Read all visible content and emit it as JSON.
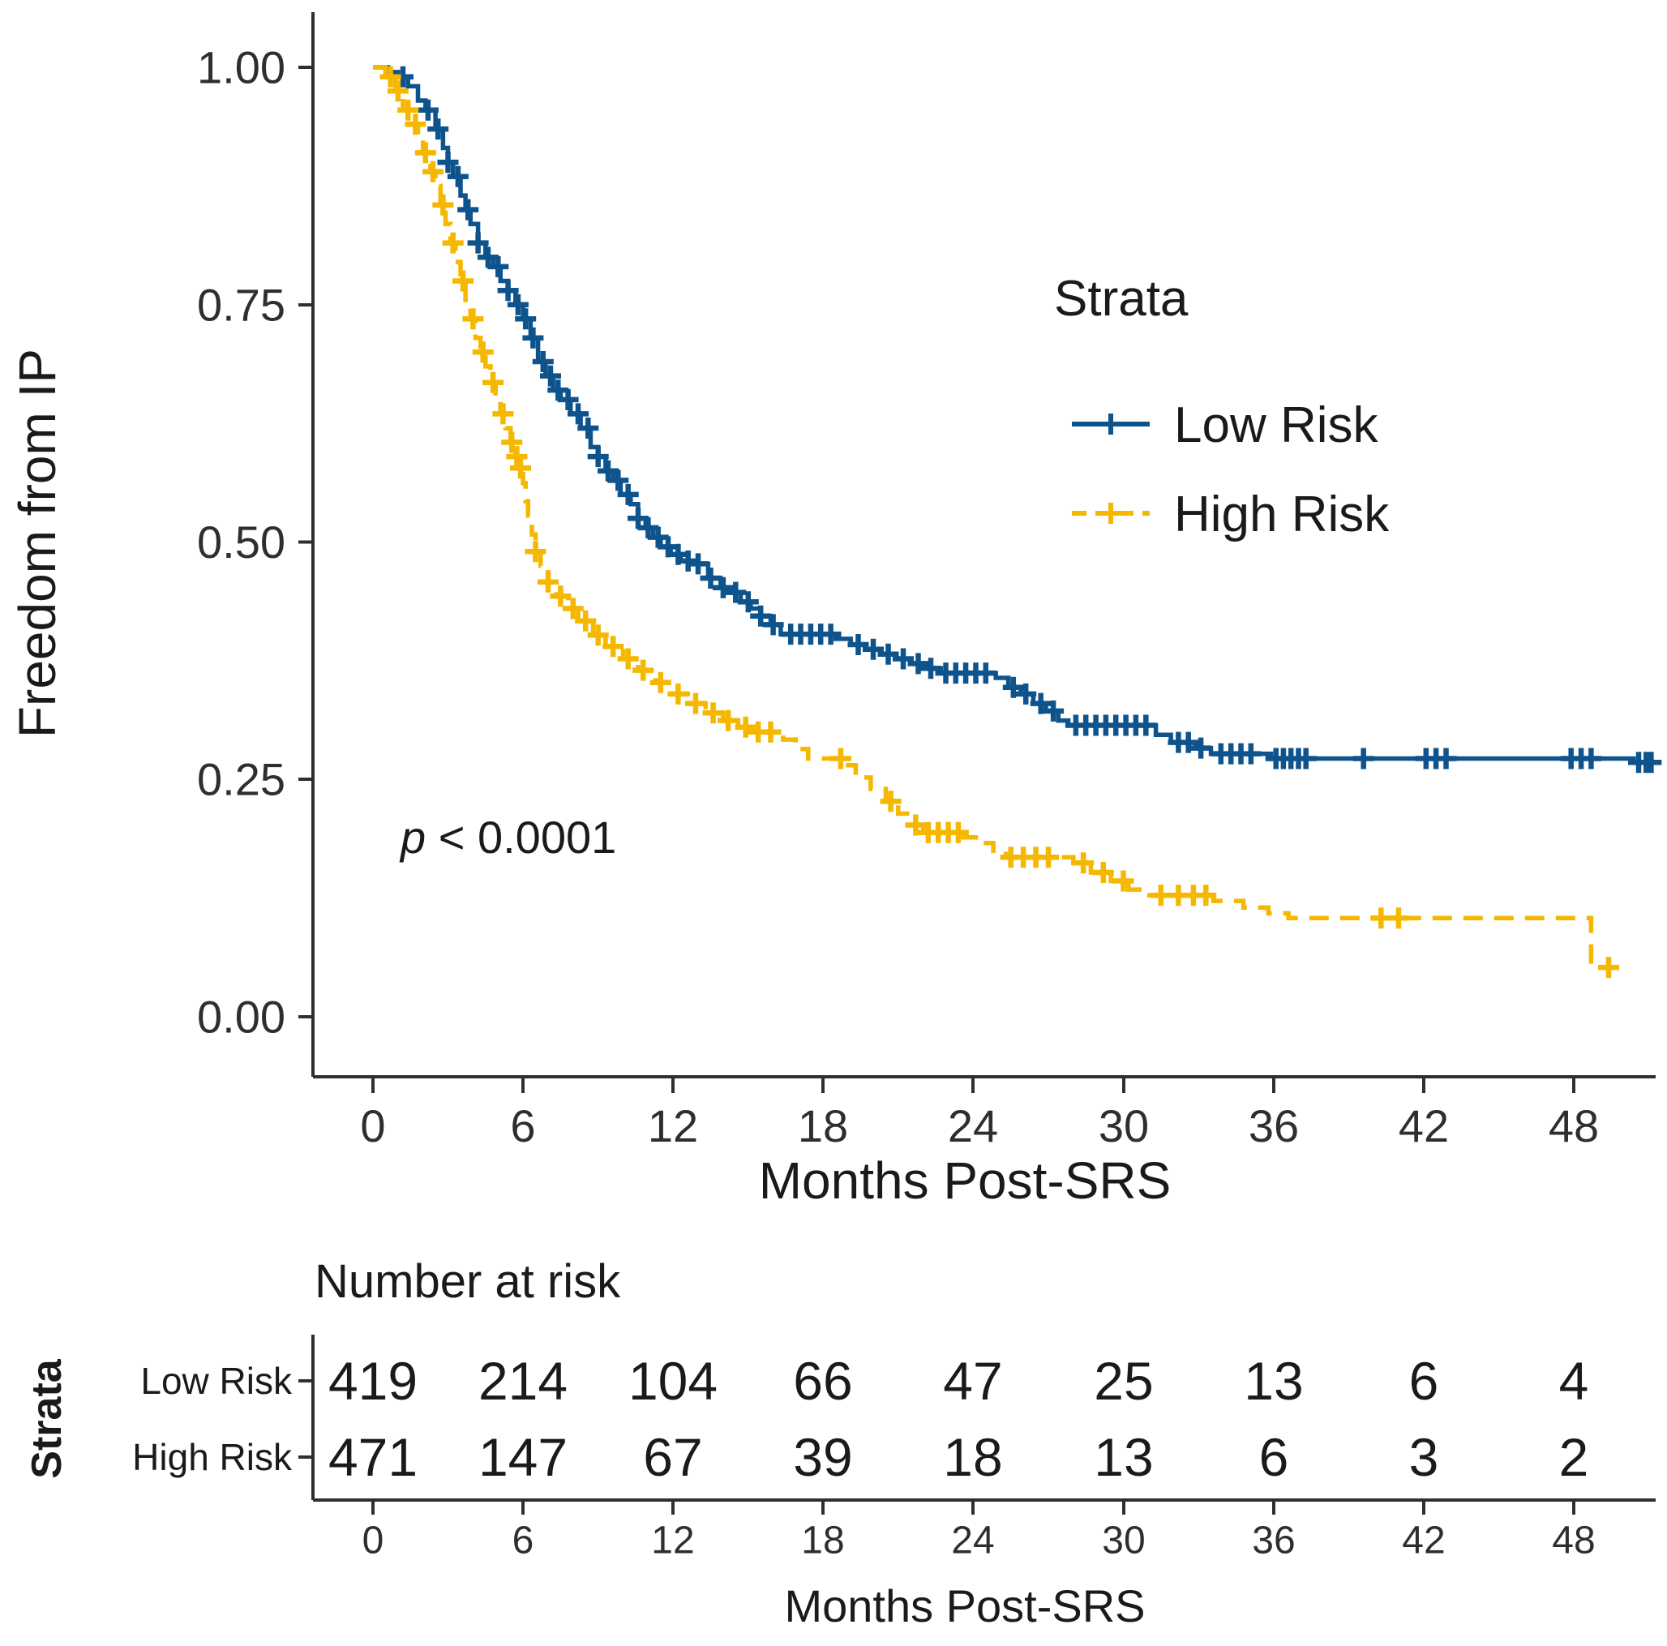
{
  "chart_data": {
    "type": "line",
    "subtype": "kaplan-meier-survival",
    "title": "",
    "xlabel": "Months Post-SRS",
    "ylabel": "Freedom from IP",
    "xlim": [
      0,
      51.5
    ],
    "ylim": [
      0,
      1
    ],
    "x_ticks": [
      0,
      6,
      12,
      18,
      24,
      30,
      36,
      42,
      48
    ],
    "x_tick_labels": [
      "0",
      "6",
      "12",
      "18",
      "24",
      "30",
      "36",
      "42",
      "48"
    ],
    "y_ticks": [
      1.0,
      0.75,
      0.5,
      0.25,
      0.0
    ],
    "y_tick_labels": [
      "1.00",
      "0.75",
      "0.50",
      "0.25",
      "0.00"
    ],
    "grid": "off",
    "legend_position": "inside-top-right",
    "legend_title": "Strata",
    "p_value": {
      "var": "p",
      "rest": " < 0.0001"
    },
    "series": [
      {
        "name": "Low Risk",
        "color": "#0E538C",
        "linetype": "solid",
        "marker": "plus-censor",
        "points": [
          [
            0,
            1
          ],
          [
            0.6,
            0.995
          ],
          [
            1,
            0.99
          ],
          [
            1.4,
            0.98
          ],
          [
            1.8,
            0.965
          ],
          [
            2.1,
            0.955
          ],
          [
            2.5,
            0.935
          ],
          [
            2.8,
            0.915
          ],
          [
            3,
            0.9
          ],
          [
            3.2,
            0.885
          ],
          [
            3.5,
            0.865
          ],
          [
            3.7,
            0.85
          ],
          [
            3.9,
            0.835
          ],
          [
            4.2,
            0.815
          ],
          [
            4.5,
            0.8
          ],
          [
            4.8,
            0.79
          ],
          [
            5.1,
            0.775
          ],
          [
            5.4,
            0.765
          ],
          [
            5.7,
            0.75
          ],
          [
            6,
            0.735
          ],
          [
            6.3,
            0.715
          ],
          [
            6.6,
            0.69
          ],
          [
            6.9,
            0.675
          ],
          [
            7.2,
            0.66
          ],
          [
            7.5,
            0.65
          ],
          [
            7.9,
            0.635
          ],
          [
            8.3,
            0.62
          ],
          [
            8.7,
            0.6
          ],
          [
            9,
            0.59
          ],
          [
            9.3,
            0.575
          ],
          [
            9.6,
            0.565
          ],
          [
            9.9,
            0.55
          ],
          [
            10.3,
            0.54
          ],
          [
            10.6,
            0.525
          ],
          [
            10.9,
            0.515
          ],
          [
            11.2,
            0.505
          ],
          [
            11.5,
            0.495
          ],
          [
            11.9,
            0.487
          ],
          [
            12.3,
            0.48
          ],
          [
            12.8,
            0.477
          ],
          [
            13.4,
            0.462
          ],
          [
            13.9,
            0.452
          ],
          [
            14.3,
            0.447
          ],
          [
            14.7,
            0.437
          ],
          [
            15.1,
            0.43
          ],
          [
            15.5,
            0.422
          ],
          [
            15.9,
            0.413
          ],
          [
            16.3,
            0.403
          ],
          [
            18.5,
            0.398
          ],
          [
            19.1,
            0.392
          ],
          [
            19.7,
            0.387
          ],
          [
            20.3,
            0.382
          ],
          [
            20.9,
            0.377
          ],
          [
            21.5,
            0.372
          ],
          [
            22.1,
            0.367
          ],
          [
            22.7,
            0.362
          ],
          [
            24.9,
            0.357
          ],
          [
            25.4,
            0.347
          ],
          [
            25.9,
            0.34
          ],
          [
            26.4,
            0.33
          ],
          [
            26.9,
            0.322
          ],
          [
            27.4,
            0.312
          ],
          [
            27.8,
            0.307
          ],
          [
            31.3,
            0.297
          ],
          [
            31.9,
            0.289
          ],
          [
            32.9,
            0.283
          ],
          [
            33.5,
            0.277
          ],
          [
            35.9,
            0.272
          ],
          [
            50.4,
            0.268
          ],
          [
            51.2,
            0.268
          ]
        ],
        "censor_times": [
          1.2,
          2.2,
          2.6,
          3.0,
          3.4,
          3.8,
          4.2,
          4.6,
          5.0,
          5.4,
          5.8,
          6.1,
          6.4,
          6.8,
          7.1,
          7.4,
          7.8,
          8.2,
          8.6,
          9.0,
          9.4,
          9.8,
          10.2,
          10.6,
          11.0,
          11.4,
          11.8,
          12.2,
          12.6,
          13.0,
          13.5,
          14.0,
          14.5,
          15.0,
          15.5,
          16.0,
          16.7,
          17.1,
          17.5,
          17.9,
          18.3,
          19.4,
          20.0,
          20.6,
          21.2,
          21.8,
          22.3,
          22.9,
          23.3,
          23.7,
          24.1,
          24.5,
          25.6,
          26.1,
          26.7,
          27.2,
          28.1,
          28.5,
          28.9,
          29.3,
          29.7,
          30.1,
          30.5,
          30.9,
          32.2,
          32.6,
          33.1,
          33.9,
          34.3,
          34.7,
          35.1,
          36.1,
          36.4,
          36.7,
          37.0,
          37.3,
          39.6,
          42.1,
          42.5,
          42.9,
          47.9,
          48.3,
          48.7,
          50.6,
          50.9,
          51.1
        ]
      },
      {
        "name": "High Risk",
        "color": "#F5B700",
        "linetype": "dashed",
        "marker": "plus-censor",
        "points": [
          [
            0,
            1
          ],
          [
            0.5,
            0.99
          ],
          [
            0.9,
            0.975
          ],
          [
            1.2,
            0.955
          ],
          [
            1.5,
            0.94
          ],
          [
            1.8,
            0.925
          ],
          [
            2,
            0.91
          ],
          [
            2.3,
            0.89
          ],
          [
            2.5,
            0.875
          ],
          [
            2.7,
            0.855
          ],
          [
            2.9,
            0.835
          ],
          [
            3.1,
            0.815
          ],
          [
            3.3,
            0.795
          ],
          [
            3.5,
            0.775
          ],
          [
            3.7,
            0.755
          ],
          [
            3.9,
            0.735
          ],
          [
            4.1,
            0.715
          ],
          [
            4.3,
            0.7
          ],
          [
            4.5,
            0.685
          ],
          [
            4.7,
            0.668
          ],
          [
            4.9,
            0.652
          ],
          [
            5.1,
            0.635
          ],
          [
            5.3,
            0.62
          ],
          [
            5.5,
            0.605
          ],
          [
            5.7,
            0.59
          ],
          [
            5.8,
            0.578
          ],
          [
            6,
            0.562
          ],
          [
            6.1,
            0.543
          ],
          [
            6.2,
            0.528
          ],
          [
            6.35,
            0.508
          ],
          [
            6.5,
            0.49
          ],
          [
            6.7,
            0.475
          ],
          [
            7,
            0.458
          ],
          [
            7.35,
            0.443
          ],
          [
            7.8,
            0.43
          ],
          [
            8.2,
            0.417
          ],
          [
            8.8,
            0.402
          ],
          [
            9.3,
            0.39
          ],
          [
            10,
            0.377
          ],
          [
            10.6,
            0.365
          ],
          [
            11.3,
            0.352
          ],
          [
            12,
            0.34
          ],
          [
            12.7,
            0.33
          ],
          [
            13.3,
            0.32
          ],
          [
            14,
            0.312
          ],
          [
            14.6,
            0.305
          ],
          [
            15.2,
            0.3
          ],
          [
            16.4,
            0.292
          ],
          [
            16.9,
            0.282
          ],
          [
            17.4,
            0.272
          ],
          [
            18.9,
            0.265
          ],
          [
            19.3,
            0.252
          ],
          [
            19.9,
            0.24
          ],
          [
            20.5,
            0.227
          ],
          [
            21,
            0.214
          ],
          [
            21.5,
            0.202
          ],
          [
            22,
            0.194
          ],
          [
            23.6,
            0.189
          ],
          [
            24.2,
            0.183
          ],
          [
            24.8,
            0.175
          ],
          [
            25.3,
            0.168
          ],
          [
            28,
            0.162
          ],
          [
            28.7,
            0.152
          ],
          [
            29.5,
            0.143
          ],
          [
            30.2,
            0.134
          ],
          [
            30.9,
            0.128
          ],
          [
            33.6,
            0.122
          ],
          [
            34.8,
            0.115
          ],
          [
            35.8,
            0.109
          ],
          [
            36.6,
            0.104
          ],
          [
            48.7,
            0.052
          ],
          [
            49.9,
            0.052
          ]
        ],
        "censor_times": [
          0.7,
          1.0,
          1.4,
          1.7,
          2.1,
          2.4,
          2.8,
          3.2,
          3.6,
          4.0,
          4.4,
          4.8,
          5.2,
          5.55,
          5.75,
          5.9,
          6.5,
          7.0,
          7.5,
          8.0,
          8.5,
          9.0,
          9.6,
          10.2,
          10.8,
          11.5,
          12.2,
          12.9,
          13.6,
          14.2,
          14.9,
          15.4,
          15.9,
          18.7,
          20.7,
          21.7,
          22.2,
          22.6,
          23.0,
          23.4,
          25.5,
          26.0,
          26.5,
          27.0,
          28.4,
          29.2,
          30.0,
          31.5,
          32.2,
          32.8,
          33.3,
          40.3,
          41.0,
          49.4
        ]
      }
    ]
  },
  "risk_table": {
    "title": "Number at risk",
    "axis_title": "Strata",
    "xlabel": "Months Post-SRS",
    "x_tick_labels": [
      "0",
      "6",
      "12",
      "18",
      "24",
      "30",
      "36",
      "42",
      "48"
    ],
    "rows": [
      {
        "label": "Low Risk",
        "color": "#0E538C",
        "values": [
          "419",
          "214",
          "104",
          "66",
          "47",
          "25",
          "13",
          "6",
          "4"
        ]
      },
      {
        "label": "High Risk",
        "color": "#F5B700",
        "values": [
          "471",
          "147",
          "67",
          "39",
          "18",
          "13",
          "6",
          "3",
          "2"
        ]
      }
    ]
  }
}
